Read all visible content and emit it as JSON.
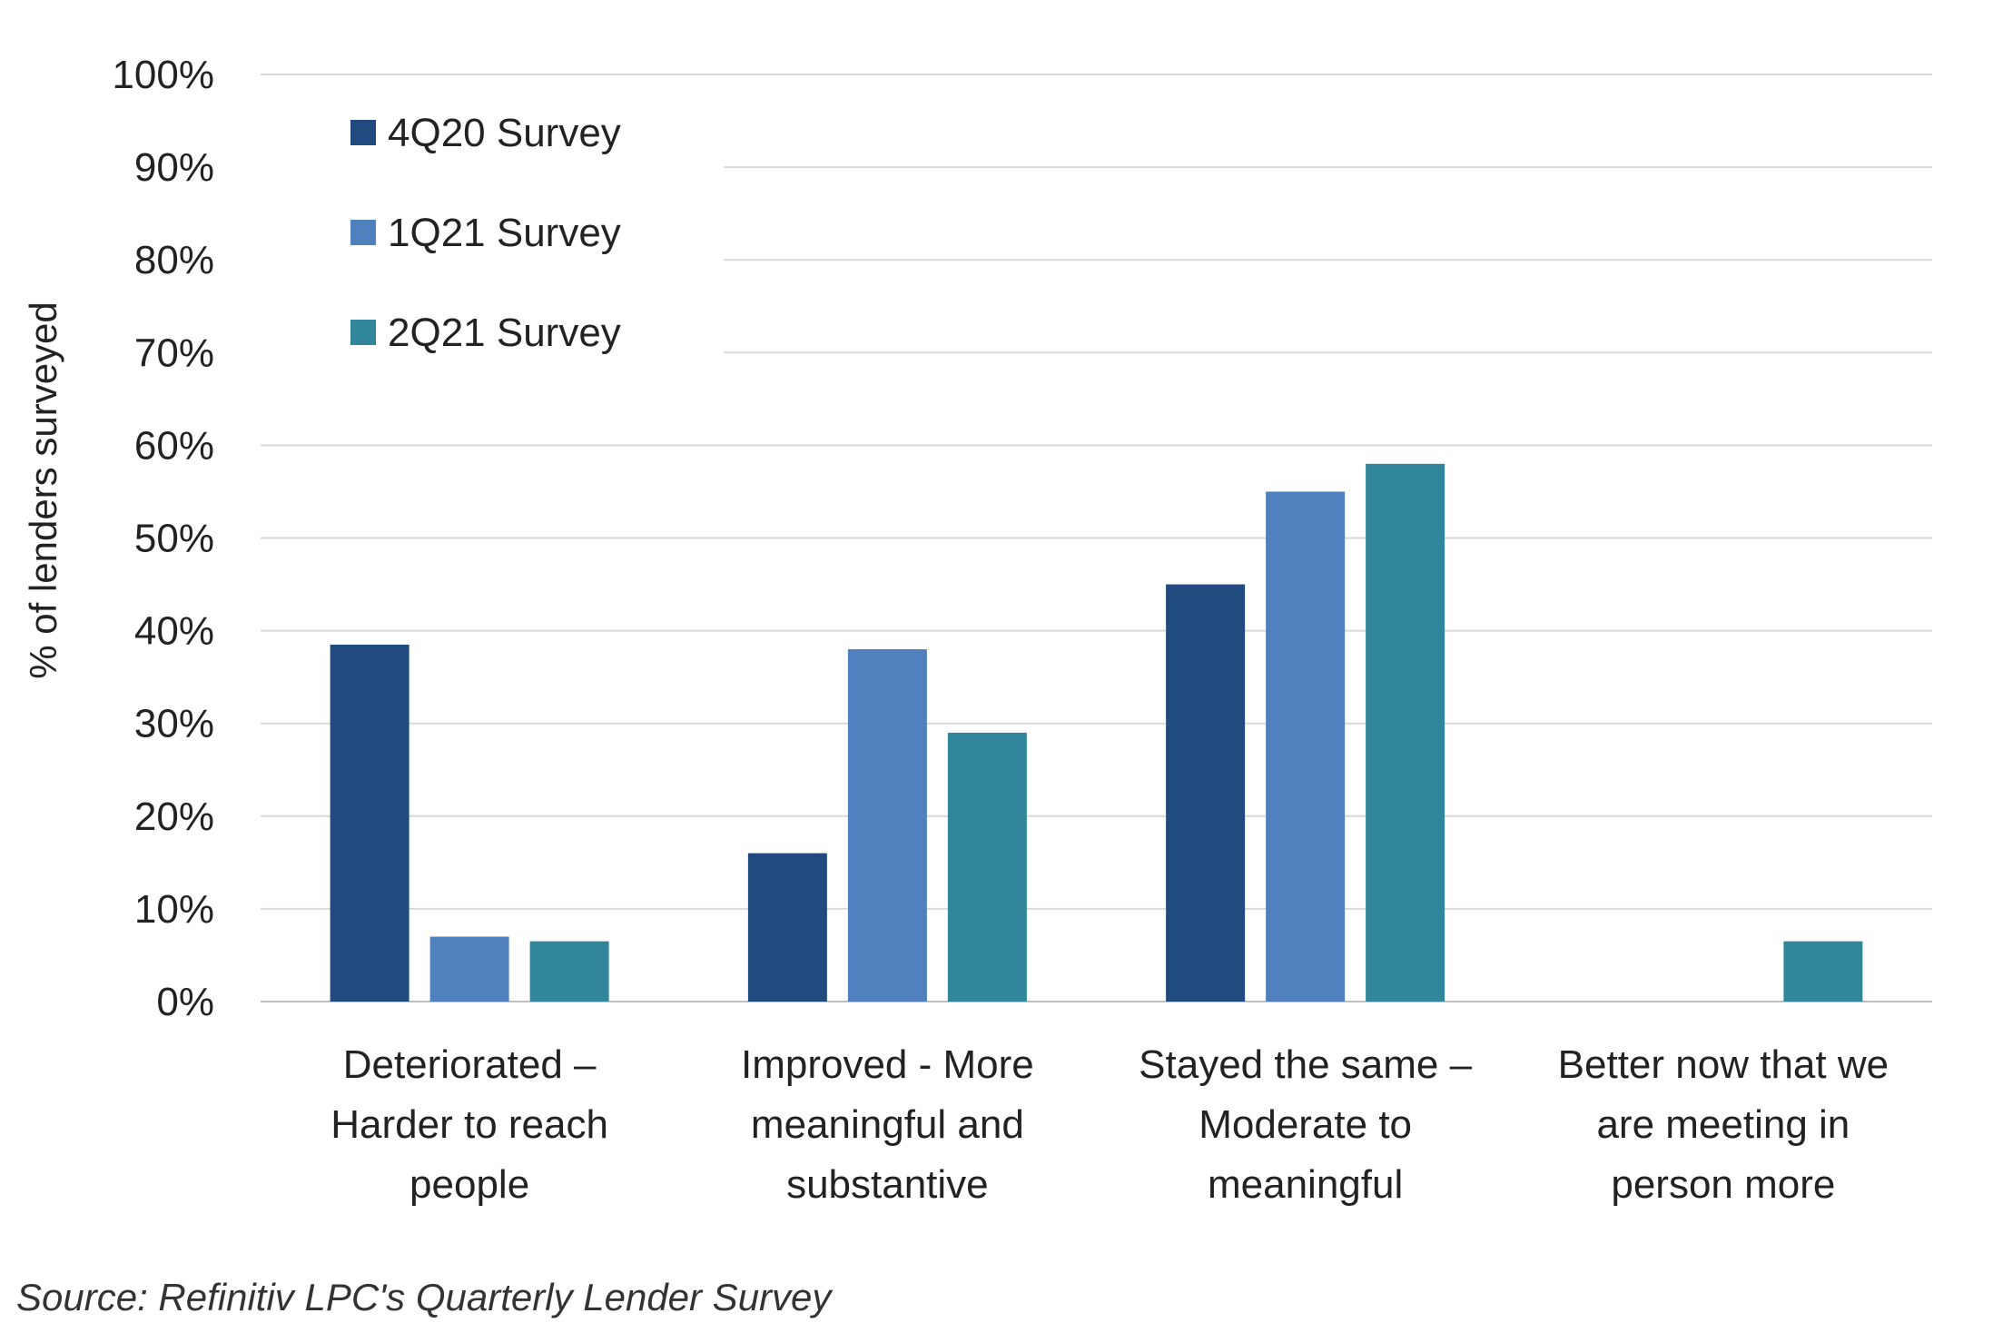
{
  "chart_data": {
    "type": "bar",
    "ylabel": "% of lenders surveyed",
    "ylim": [
      0,
      100
    ],
    "y_ticks": [
      "0%",
      "10%",
      "20%",
      "30%",
      "40%",
      "50%",
      "60%",
      "70%",
      "80%",
      "90%",
      "100%"
    ],
    "grid": true,
    "legend_position": "top-left",
    "categories": [
      [
        "Deteriorated –",
        "Harder to reach",
        "people"
      ],
      [
        "Improved - More",
        "meaningful and",
        "substantive"
      ],
      [
        "Stayed the same –",
        "Moderate to",
        "meaningful"
      ],
      [
        "Better now that we",
        "are meeting in",
        "person more"
      ]
    ],
    "series": [
      {
        "name": "4Q20 Survey",
        "color": "#214a7e",
        "values": [
          38.5,
          16,
          45,
          0
        ]
      },
      {
        "name": "1Q21 Survey",
        "color": "#5080bd",
        "values": [
          7,
          38,
          55,
          0
        ]
      },
      {
        "name": "2Q21 Survey",
        "color": "#31869b",
        "values": [
          6.5,
          29,
          58,
          6.5
        ]
      }
    ]
  },
  "source": "Source: Refinitiv LPC's Quarterly Lender Survey",
  "colors": {
    "grid": "#d9d9d9",
    "text": "#222222"
  }
}
